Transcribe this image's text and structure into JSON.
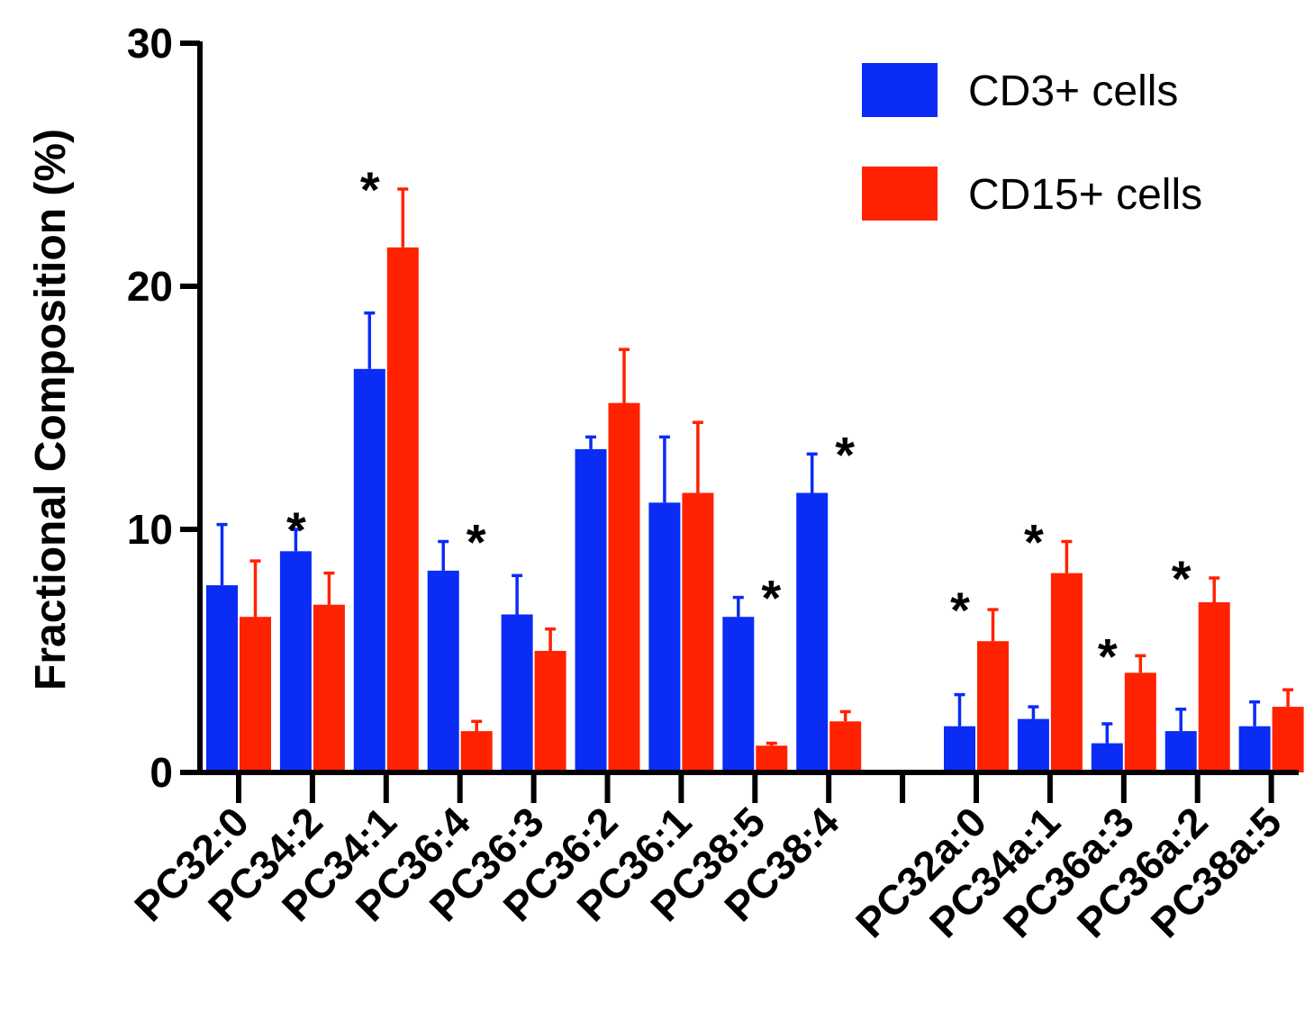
{
  "chart_data": {
    "type": "bar",
    "title": "",
    "xlabel": "",
    "ylabel": "Fractional Composition (%)",
    "ylim": [
      0,
      30
    ],
    "yticks": [
      "0",
      "10",
      "20",
      "30"
    ],
    "grid": false,
    "legend_position": "top-right",
    "categories": [
      "PC32:0",
      "PC34:2",
      "PC34:1",
      "PC36:4",
      "PC36:3",
      "PC36:2",
      "PC36:1",
      "PC38:5",
      "PC38:4",
      "",
      "PC32a:0",
      "PC34a:1",
      "PC36a:3",
      "PC36a:2",
      "PC38a:5"
    ],
    "series": [
      {
        "name": "CD3+ cells",
        "color": "#0a2cf5",
        "values": [
          7.7,
          9.1,
          16.6,
          8.3,
          6.5,
          13.3,
          11.1,
          6.4,
          11.5,
          null,
          1.9,
          2.2,
          1.2,
          1.7,
          1.9
        ],
        "errors": [
          2.5,
          0.9,
          2.3,
          1.2,
          1.6,
          0.5,
          2.7,
          0.8,
          1.6,
          null,
          1.3,
          0.5,
          0.8,
          0.9,
          1.0
        ]
      },
      {
        "name": "CD15+ cells",
        "color": "#ff2200",
        "values": [
          6.4,
          6.9,
          21.6,
          1.7,
          5.0,
          15.2,
          11.5,
          1.1,
          2.1,
          null,
          5.4,
          8.2,
          4.1,
          7.0,
          2.7
        ],
        "errors": [
          2.3,
          1.3,
          2.4,
          0.4,
          0.9,
          2.2,
          2.9,
          0.1,
          0.4,
          null,
          1.3,
          1.3,
          0.7,
          1.0,
          0.7
        ]
      }
    ],
    "significance_marker": "*",
    "significance": [
      {
        "category": "PC34:2",
        "series": "CD3+ cells"
      },
      {
        "category": "PC34:1",
        "series": "CD3+ cells"
      },
      {
        "category": "PC36:4",
        "series": "CD15+ cells"
      },
      {
        "category": "PC38:5",
        "series": "CD15+ cells"
      },
      {
        "category": "PC38:4",
        "series": "CD15+ cells"
      },
      {
        "category": "PC32a:0",
        "series": "CD3+ cells"
      },
      {
        "category": "PC34a:1",
        "series": "CD3+ cells"
      },
      {
        "category": "PC36a:3",
        "series": "CD3+ cells"
      },
      {
        "category": "PC36a:2",
        "series": "CD3+ cells"
      }
    ]
  }
}
